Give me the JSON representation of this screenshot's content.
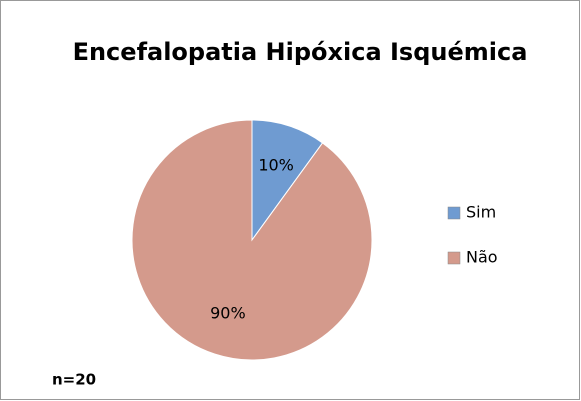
{
  "chart_data": {
    "type": "pie",
    "title": "Encefalopatia Hipóxica Isquémica",
    "categories": [
      "Sim",
      "Não"
    ],
    "values": [
      10,
      90
    ],
    "value_labels": [
      "10%",
      "90%"
    ],
    "colors": [
      "#6f9bd1",
      "#d49a8c"
    ],
    "legend": "right",
    "annotation": "n=20"
  }
}
